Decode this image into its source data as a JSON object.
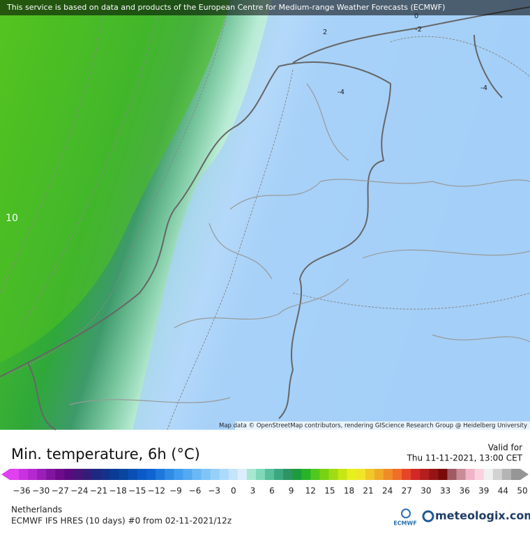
{
  "header": {
    "notice": "This service is based on data and products of the European Centre for Medium-range Weather Forecasts (ECMWF)"
  },
  "map": {
    "attribution": "Map data © OpenStreetMap contributors, rendering GIScience Research Group @ Heidelberg University",
    "contour_labels": [
      "2",
      "0",
      "-2",
      "-4",
      "-4",
      "10"
    ]
  },
  "title": "Min. temperature, 6h (°C)",
  "valid": {
    "label": "Valid for",
    "time": "Thu 11-11-2021, 13:00 CET"
  },
  "legend": {
    "ticks": [
      "−36",
      "−30",
      "−27",
      "−24",
      "−21",
      "−18",
      "−15",
      "−12",
      "−9",
      "−6",
      "−3",
      "0",
      "3",
      "6",
      "9",
      "12",
      "15",
      "18",
      "21",
      "24",
      "27",
      "30",
      "33",
      "36",
      "39",
      "44",
      "50"
    ],
    "colors": [
      "#e040f0",
      "#c832e0",
      "#b428d0",
      "#9a1eb8",
      "#8214a0",
      "#6e0a8c",
      "#5a0a80",
      "#46147a",
      "#321e78",
      "#1e2882",
      "#14328c",
      "#0a3c96",
      "#0846a0",
      "#0a50b4",
      "#0c5ac8",
      "#1064d2",
      "#1e78dc",
      "#2e8ce6",
      "#409cee",
      "#54aaf0",
      "#6ab8f4",
      "#80c4f6",
      "#96d0f8",
      "#acdafa",
      "#c4e4fc",
      "#dceefe",
      "#a8e8d0",
      "#80d8b8",
      "#58c09c",
      "#3ca880",
      "#2e9464",
      "#1e9c3c",
      "#28b428",
      "#50c81e",
      "#78d214",
      "#a0dc14",
      "#c8e614",
      "#e6f01e",
      "#f0e628",
      "#f0c828",
      "#f0aa28",
      "#f08c28",
      "#f06e28",
      "#e64628",
      "#d22828",
      "#b41e1e",
      "#961414",
      "#780a0a",
      "#a05a64",
      "#c88c96",
      "#f0b4c8",
      "#f8d2dc",
      "#f0f0f0",
      "#d2d2d2",
      "#b4b4b4",
      "#969696"
    ]
  },
  "footer": {
    "region": "Netherlands",
    "model": "ECMWF IFS HRES (10 days) #0 from  02-11-2021/12z",
    "ecmwf": "ECMWF",
    "brand": "meteologix.com"
  }
}
